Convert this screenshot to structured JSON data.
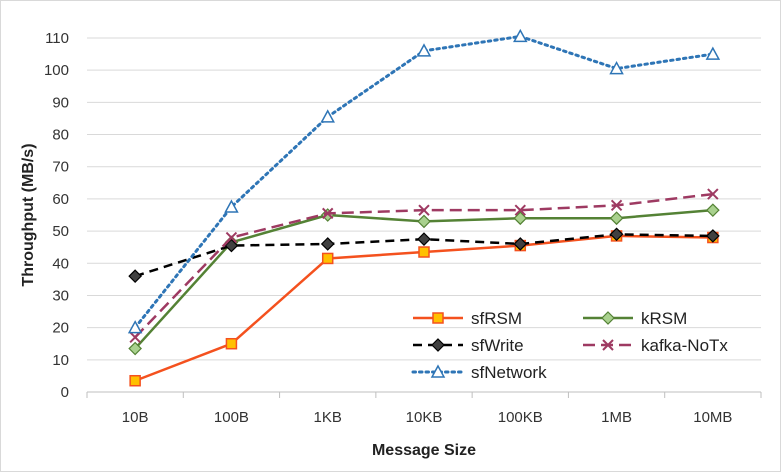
{
  "chart_data": {
    "type": "line",
    "title": "",
    "xlabel": "Message Size",
    "ylabel": "Throughput (MB/s)",
    "categories": [
      "10B",
      "100B",
      "1KB",
      "10KB",
      "100KB",
      "1MB",
      "10MB"
    ],
    "ylim": [
      0,
      110
    ],
    "yticks": [
      0,
      10,
      20,
      30,
      40,
      50,
      60,
      70,
      80,
      90,
      100,
      110
    ],
    "grid": "horizontal",
    "legend_position": "bottom-right",
    "series": [
      {
        "name": "sfRSM",
        "values": [
          3.5,
          15,
          41.5,
          43.5,
          45.5,
          48.5,
          48
        ],
        "color": "#f4511e",
        "marker": "square",
        "line": "solid"
      },
      {
        "name": "kRSM",
        "values": [
          13.5,
          46.5,
          55,
          53,
          54,
          54,
          56.5
        ],
        "color": "#548235",
        "marker": "diamond",
        "line": "solid"
      },
      {
        "name": "sfWrite",
        "values": [
          36,
          45.5,
          46,
          47.5,
          46,
          49,
          48.5
        ],
        "color": "#000000",
        "marker": "diamond",
        "line": "dashed"
      },
      {
        "name": "kafka-NoTx",
        "values": [
          17,
          48,
          55.5,
          56.5,
          56.5,
          58,
          61.5
        ],
        "color": "#9e3a62",
        "marker": "x",
        "line": "longdash"
      },
      {
        "name": "sfNetwork",
        "values": [
          20,
          57.5,
          85.5,
          106,
          110.5,
          100.5,
          105
        ],
        "color": "#2e75b6",
        "marker": "triangle",
        "line": "dotted"
      }
    ]
  }
}
